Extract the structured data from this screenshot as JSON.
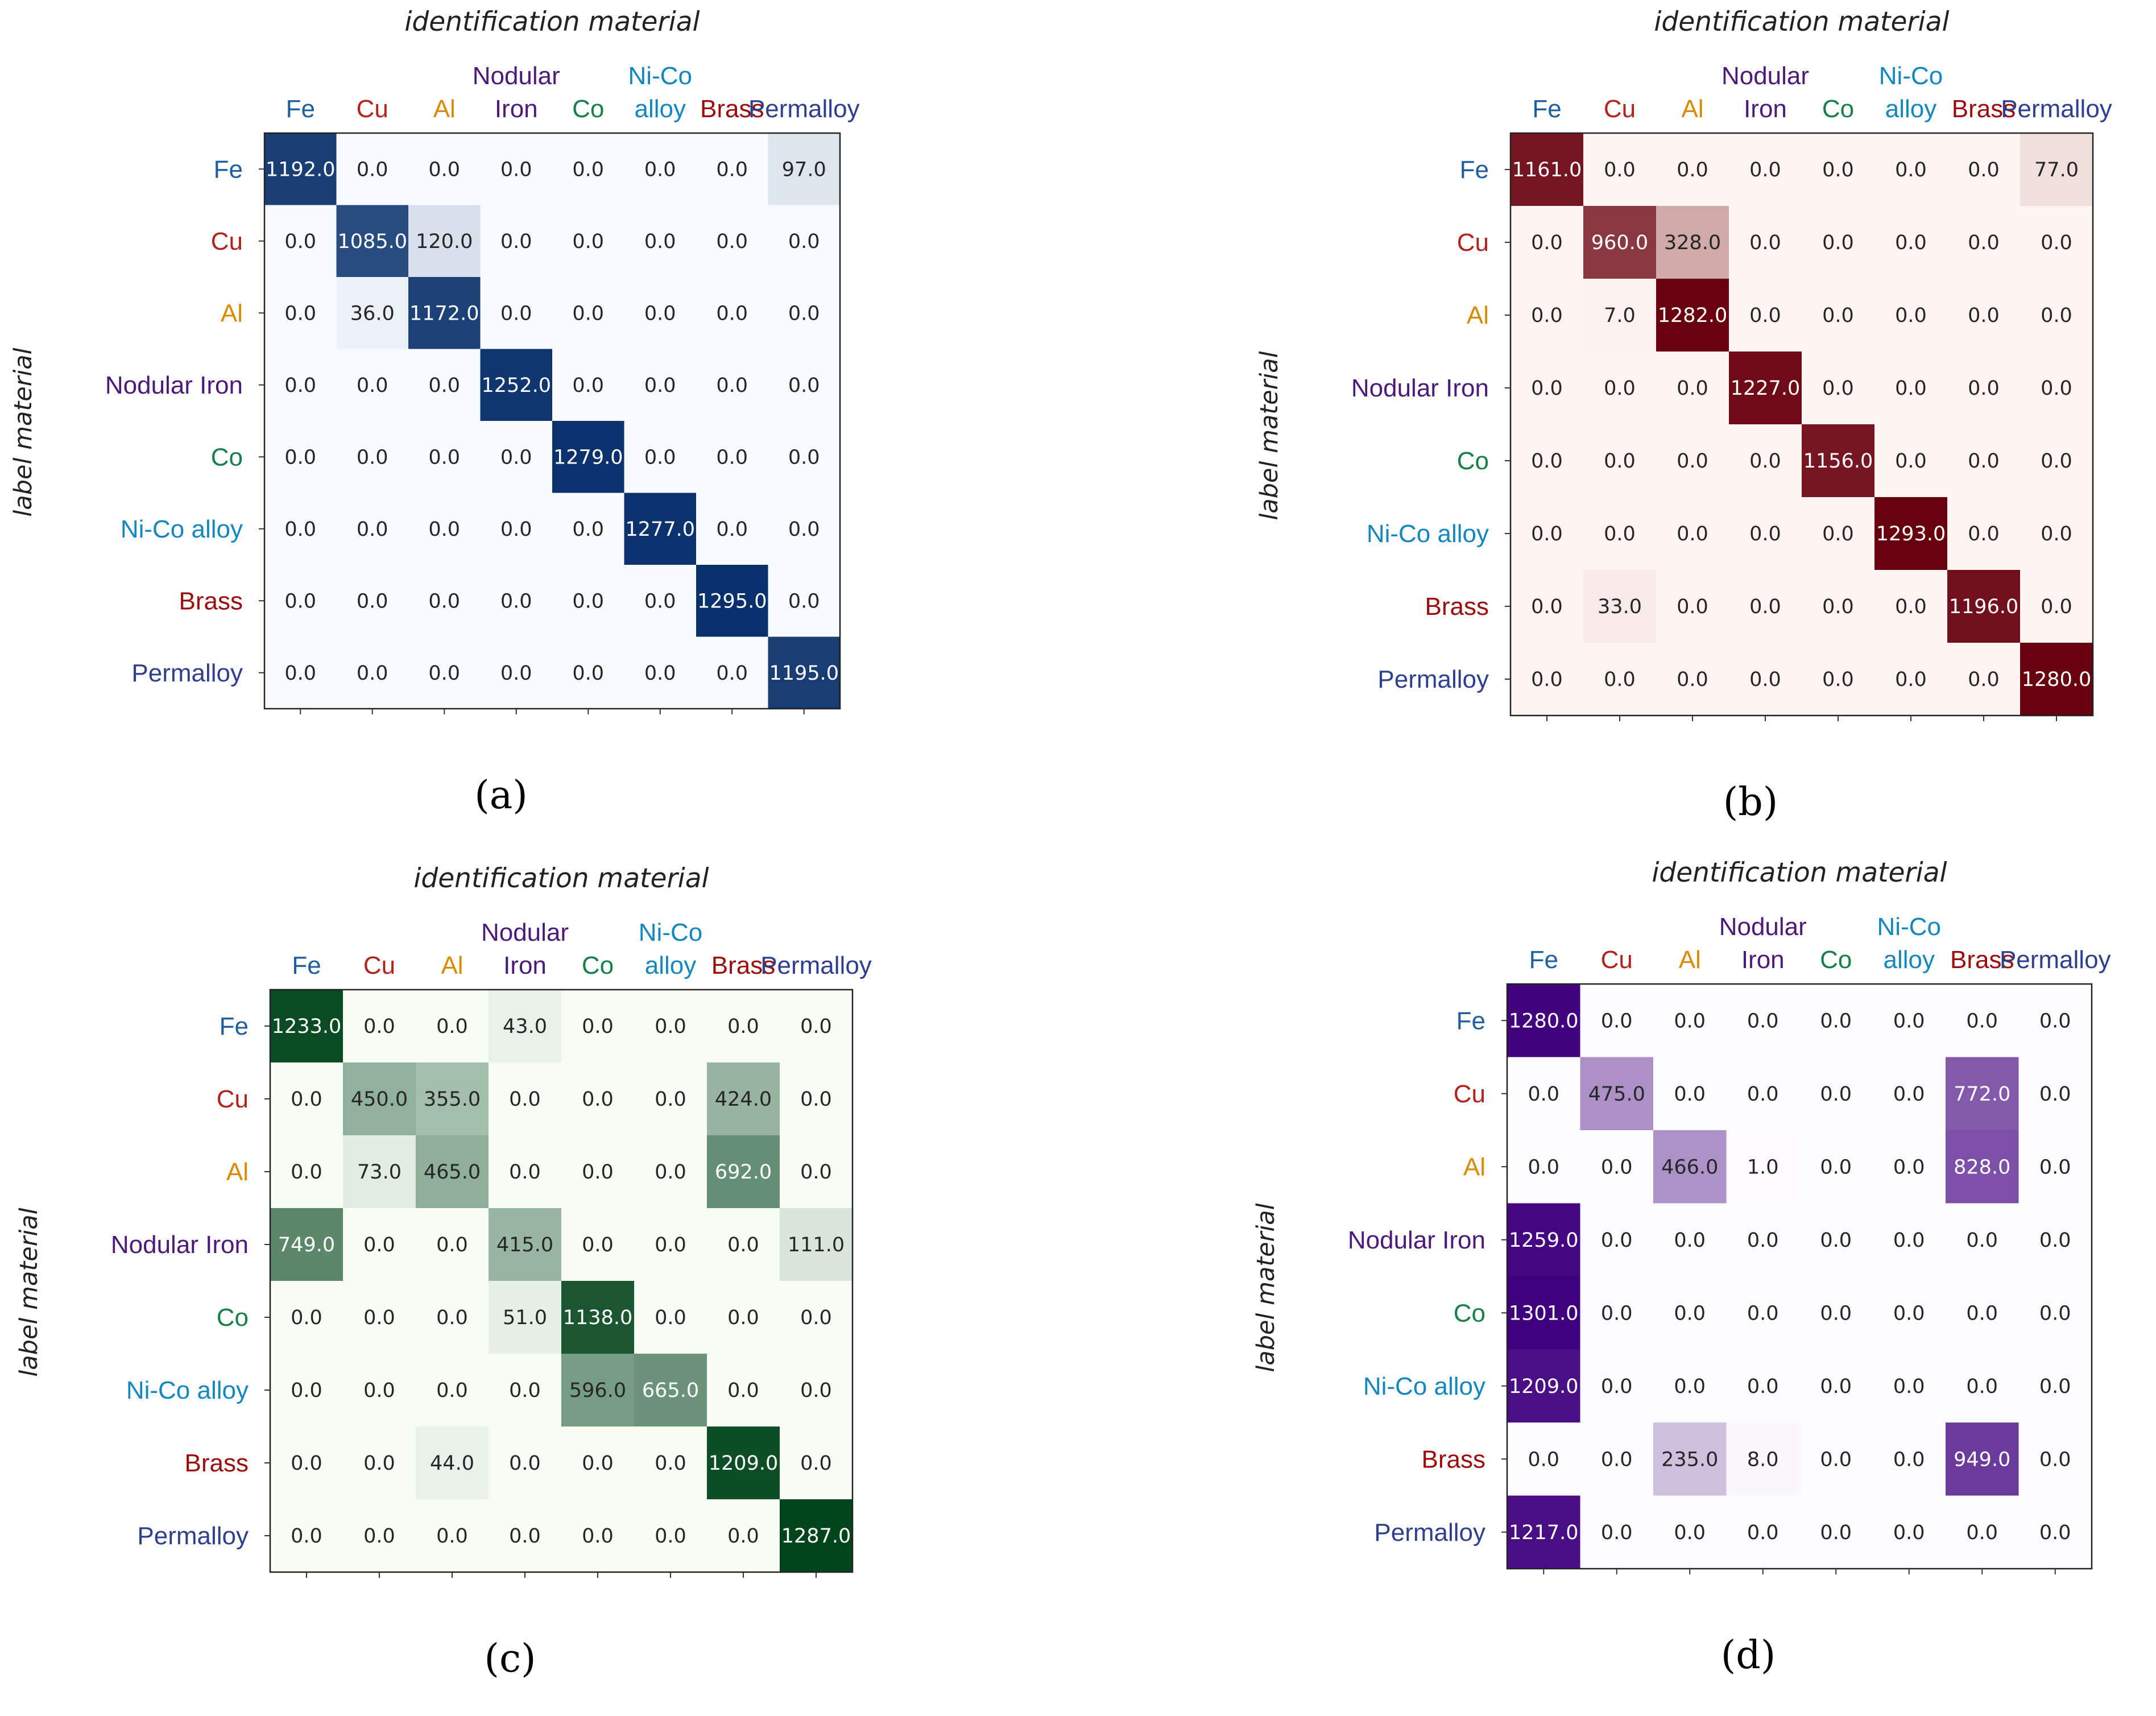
{
  "figure": {
    "categories": [
      "Fe",
      "Cu",
      "Al",
      "Nodular Iron",
      "Co",
      "Ni-Co alloy",
      "Brass",
      "Permalloy"
    ],
    "top_labels": [
      [
        "Fe"
      ],
      [
        "Cu"
      ],
      [
        "Al"
      ],
      [
        "Nodular",
        "Iron"
      ],
      [
        "Co"
      ],
      [
        "Ni-Co",
        "alloy"
      ],
      [
        "Brass"
      ],
      [
        "Permalloy"
      ]
    ],
    "category_colors": [
      "#1f5fa0",
      "#b2231d",
      "#d98a00",
      "#4b1a7a",
      "#17804a",
      "#1487be",
      "#9b0d0d",
      "#2e3f8f"
    ]
  },
  "chart_data": [
    {
      "type": "heatmap",
      "panel_label": "(a)",
      "title": "",
      "xlabel": "identification material",
      "ylabel": "label material",
      "colormap": "Blues",
      "categories": [
        "Fe",
        "Cu",
        "Al",
        "Nodular Iron",
        "Co",
        "Ni-Co alloy",
        "Brass",
        "Permalloy"
      ],
      "values": [
        [
          1192.0,
          0.0,
          0.0,
          0.0,
          0.0,
          0.0,
          0.0,
          97.0
        ],
        [
          0.0,
          1085.0,
          120.0,
          0.0,
          0.0,
          0.0,
          0.0,
          0.0
        ],
        [
          0.0,
          36.0,
          1172.0,
          0.0,
          0.0,
          0.0,
          0.0,
          0.0
        ],
        [
          0.0,
          0.0,
          0.0,
          1252.0,
          0.0,
          0.0,
          0.0,
          0.0
        ],
        [
          0.0,
          0.0,
          0.0,
          0.0,
          1279.0,
          0.0,
          0.0,
          0.0
        ],
        [
          0.0,
          0.0,
          0.0,
          0.0,
          0.0,
          1277.0,
          0.0,
          0.0
        ],
        [
          0.0,
          0.0,
          0.0,
          0.0,
          0.0,
          0.0,
          1295.0,
          0.0
        ],
        [
          0.0,
          0.0,
          0.0,
          0.0,
          0.0,
          0.0,
          0.0,
          1195.0
        ]
      ]
    },
    {
      "type": "heatmap",
      "panel_label": "(b)",
      "title": "",
      "xlabel": "identification material",
      "ylabel": "label material",
      "colormap": "Reds",
      "categories": [
        "Fe",
        "Cu",
        "Al",
        "Nodular Iron",
        "Co",
        "Ni-Co alloy",
        "Brass",
        "Permalloy"
      ],
      "values": [
        [
          1161.0,
          0.0,
          0.0,
          0.0,
          0.0,
          0.0,
          0.0,
          77.0
        ],
        [
          0.0,
          960.0,
          328.0,
          0.0,
          0.0,
          0.0,
          0.0,
          0.0
        ],
        [
          0.0,
          7.0,
          1282.0,
          0.0,
          0.0,
          0.0,
          0.0,
          0.0
        ],
        [
          0.0,
          0.0,
          0.0,
          1227.0,
          0.0,
          0.0,
          0.0,
          0.0
        ],
        [
          0.0,
          0.0,
          0.0,
          0.0,
          1156.0,
          0.0,
          0.0,
          0.0
        ],
        [
          0.0,
          0.0,
          0.0,
          0.0,
          0.0,
          1293.0,
          0.0,
          0.0
        ],
        [
          0.0,
          33.0,
          0.0,
          0.0,
          0.0,
          0.0,
          1196.0,
          0.0
        ],
        [
          0.0,
          0.0,
          0.0,
          0.0,
          0.0,
          0.0,
          0.0,
          1280.0
        ]
      ]
    },
    {
      "type": "heatmap",
      "panel_label": "(c)",
      "title": "",
      "xlabel": "identification material",
      "ylabel": "label material",
      "colormap": "Greens",
      "categories": [
        "Fe",
        "Cu",
        "Al",
        "Nodular Iron",
        "Co",
        "Ni-Co alloy",
        "Brass",
        "Permalloy"
      ],
      "values": [
        [
          1233.0,
          0.0,
          0.0,
          43.0,
          0.0,
          0.0,
          0.0,
          0.0
        ],
        [
          0.0,
          450.0,
          355.0,
          0.0,
          0.0,
          0.0,
          424.0,
          0.0
        ],
        [
          0.0,
          73.0,
          465.0,
          0.0,
          0.0,
          0.0,
          692.0,
          0.0
        ],
        [
          749.0,
          0.0,
          0.0,
          415.0,
          0.0,
          0.0,
          0.0,
          111.0
        ],
        [
          0.0,
          0.0,
          0.0,
          51.0,
          1138.0,
          0.0,
          0.0,
          0.0
        ],
        [
          0.0,
          0.0,
          0.0,
          0.0,
          596.0,
          665.0,
          0.0,
          0.0
        ],
        [
          0.0,
          0.0,
          44.0,
          0.0,
          0.0,
          0.0,
          1209.0,
          0.0
        ],
        [
          0.0,
          0.0,
          0.0,
          0.0,
          0.0,
          0.0,
          0.0,
          1287.0
        ]
      ]
    },
    {
      "type": "heatmap",
      "panel_label": "(d)",
      "title": "",
      "xlabel": "identification material",
      "ylabel": "label material",
      "colormap": "Purples",
      "categories": [
        "Fe",
        "Cu",
        "Al",
        "Nodular Iron",
        "Co",
        "Ni-Co alloy",
        "Brass",
        "Permalloy"
      ],
      "values": [
        [
          1280.0,
          0.0,
          0.0,
          0.0,
          0.0,
          0.0,
          0.0,
          0.0
        ],
        [
          0.0,
          475.0,
          0.0,
          0.0,
          0.0,
          0.0,
          772.0,
          0.0
        ],
        [
          0.0,
          0.0,
          466.0,
          1.0,
          0.0,
          0.0,
          828.0,
          0.0
        ],
        [
          1259.0,
          0.0,
          0.0,
          0.0,
          0.0,
          0.0,
          0.0,
          0.0
        ],
        [
          1301.0,
          0.0,
          0.0,
          0.0,
          0.0,
          0.0,
          0.0,
          0.0
        ],
        [
          1209.0,
          0.0,
          0.0,
          0.0,
          0.0,
          0.0,
          0.0,
          0.0
        ],
        [
          0.0,
          0.0,
          235.0,
          8.0,
          0.0,
          0.0,
          949.0,
          0.0
        ],
        [
          1217.0,
          0.0,
          0.0,
          0.0,
          0.0,
          0.0,
          0.0,
          0.0
        ]
      ]
    }
  ]
}
